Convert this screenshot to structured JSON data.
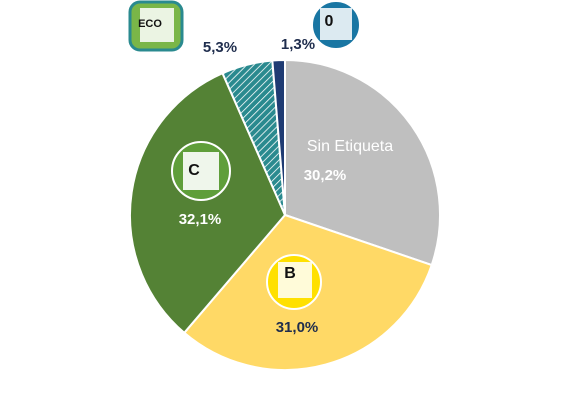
{
  "chart_data": {
    "type": "pie",
    "categories": [
      "Sin Etiqueta",
      "B",
      "C",
      "ECO",
      "0"
    ],
    "values": [
      30.2,
      31.0,
      32.1,
      5.3,
      1.3
    ],
    "value_labels": [
      "30,2%",
      "31,0%",
      "32,1%",
      "5,3%",
      "1,3%"
    ],
    "colors": [
      "#bfbfbf",
      "#ffd966",
      "#548235",
      "#2a8a8f",
      "#1f3b73"
    ]
  }
}
